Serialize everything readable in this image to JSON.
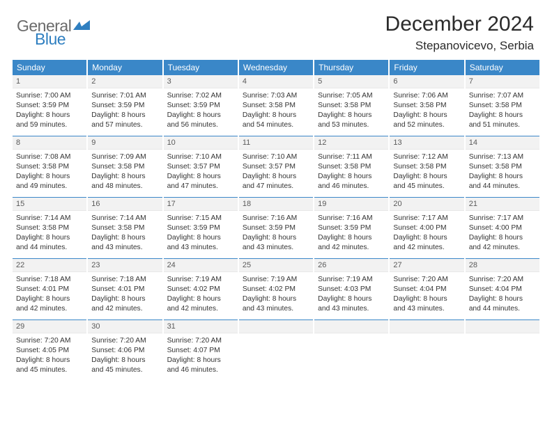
{
  "brand": {
    "word1": "General",
    "word2": "Blue"
  },
  "title": "December 2024",
  "location": "Stepanovicevo, Serbia",
  "colors": {
    "header_bg": "#3a87c8",
    "header_text": "#ffffff",
    "daynum_bg": "#f2f2f2",
    "border": "#3a87c8",
    "logo_gray": "#6b6b6b",
    "logo_blue": "#2f7fc0"
  },
  "dow": [
    "Sunday",
    "Monday",
    "Tuesday",
    "Wednesday",
    "Thursday",
    "Friday",
    "Saturday"
  ],
  "weeks": [
    [
      {
        "n": "1",
        "sr": "7:00 AM",
        "ss": "3:59 PM",
        "dl": "8 hours and 59 minutes."
      },
      {
        "n": "2",
        "sr": "7:01 AM",
        "ss": "3:59 PM",
        "dl": "8 hours and 57 minutes."
      },
      {
        "n": "3",
        "sr": "7:02 AM",
        "ss": "3:59 PM",
        "dl": "8 hours and 56 minutes."
      },
      {
        "n": "4",
        "sr": "7:03 AM",
        "ss": "3:58 PM",
        "dl": "8 hours and 54 minutes."
      },
      {
        "n": "5",
        "sr": "7:05 AM",
        "ss": "3:58 PM",
        "dl": "8 hours and 53 minutes."
      },
      {
        "n": "6",
        "sr": "7:06 AM",
        "ss": "3:58 PM",
        "dl": "8 hours and 52 minutes."
      },
      {
        "n": "7",
        "sr": "7:07 AM",
        "ss": "3:58 PM",
        "dl": "8 hours and 51 minutes."
      }
    ],
    [
      {
        "n": "8",
        "sr": "7:08 AM",
        "ss": "3:58 PM",
        "dl": "8 hours and 49 minutes."
      },
      {
        "n": "9",
        "sr": "7:09 AM",
        "ss": "3:58 PM",
        "dl": "8 hours and 48 minutes."
      },
      {
        "n": "10",
        "sr": "7:10 AM",
        "ss": "3:57 PM",
        "dl": "8 hours and 47 minutes."
      },
      {
        "n": "11",
        "sr": "7:10 AM",
        "ss": "3:57 PM",
        "dl": "8 hours and 47 minutes."
      },
      {
        "n": "12",
        "sr": "7:11 AM",
        "ss": "3:58 PM",
        "dl": "8 hours and 46 minutes."
      },
      {
        "n": "13",
        "sr": "7:12 AM",
        "ss": "3:58 PM",
        "dl": "8 hours and 45 minutes."
      },
      {
        "n": "14",
        "sr": "7:13 AM",
        "ss": "3:58 PM",
        "dl": "8 hours and 44 minutes."
      }
    ],
    [
      {
        "n": "15",
        "sr": "7:14 AM",
        "ss": "3:58 PM",
        "dl": "8 hours and 44 minutes."
      },
      {
        "n": "16",
        "sr": "7:14 AM",
        "ss": "3:58 PM",
        "dl": "8 hours and 43 minutes."
      },
      {
        "n": "17",
        "sr": "7:15 AM",
        "ss": "3:59 PM",
        "dl": "8 hours and 43 minutes."
      },
      {
        "n": "18",
        "sr": "7:16 AM",
        "ss": "3:59 PM",
        "dl": "8 hours and 43 minutes."
      },
      {
        "n": "19",
        "sr": "7:16 AM",
        "ss": "3:59 PM",
        "dl": "8 hours and 42 minutes."
      },
      {
        "n": "20",
        "sr": "7:17 AM",
        "ss": "4:00 PM",
        "dl": "8 hours and 42 minutes."
      },
      {
        "n": "21",
        "sr": "7:17 AM",
        "ss": "4:00 PM",
        "dl": "8 hours and 42 minutes."
      }
    ],
    [
      {
        "n": "22",
        "sr": "7:18 AM",
        "ss": "4:01 PM",
        "dl": "8 hours and 42 minutes."
      },
      {
        "n": "23",
        "sr": "7:18 AM",
        "ss": "4:01 PM",
        "dl": "8 hours and 42 minutes."
      },
      {
        "n": "24",
        "sr": "7:19 AM",
        "ss": "4:02 PM",
        "dl": "8 hours and 42 minutes."
      },
      {
        "n": "25",
        "sr": "7:19 AM",
        "ss": "4:02 PM",
        "dl": "8 hours and 43 minutes."
      },
      {
        "n": "26",
        "sr": "7:19 AM",
        "ss": "4:03 PM",
        "dl": "8 hours and 43 minutes."
      },
      {
        "n": "27",
        "sr": "7:20 AM",
        "ss": "4:04 PM",
        "dl": "8 hours and 43 minutes."
      },
      {
        "n": "28",
        "sr": "7:20 AM",
        "ss": "4:04 PM",
        "dl": "8 hours and 44 minutes."
      }
    ],
    [
      {
        "n": "29",
        "sr": "7:20 AM",
        "ss": "4:05 PM",
        "dl": "8 hours and 45 minutes."
      },
      {
        "n": "30",
        "sr": "7:20 AM",
        "ss": "4:06 PM",
        "dl": "8 hours and 45 minutes."
      },
      {
        "n": "31",
        "sr": "7:20 AM",
        "ss": "4:07 PM",
        "dl": "8 hours and 46 minutes."
      },
      null,
      null,
      null,
      null
    ]
  ],
  "labels": {
    "sunrise": "Sunrise:",
    "sunset": "Sunset:",
    "daylight": "Daylight:"
  }
}
